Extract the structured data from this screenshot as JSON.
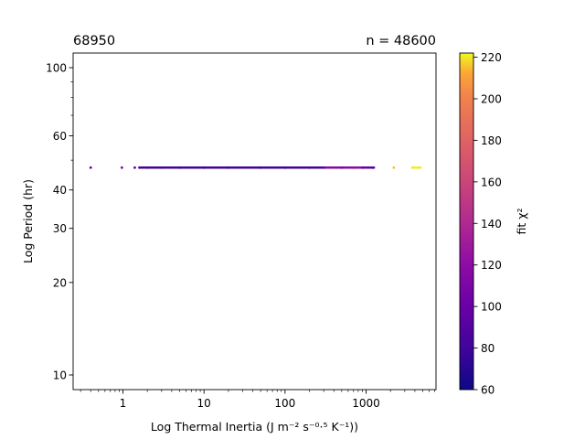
{
  "chart_data": {
    "type": "scatter",
    "title_left": "68950",
    "title_right": "n = 48600",
    "xlabel": "Log Thermal Inertia (J m⁻² s⁻⁰·⁵ K⁻¹))",
    "ylabel": "Log Period (hr)",
    "xscale": "log",
    "yscale": "log",
    "xlim": [
      0.25,
      700
    ],
    "ylim": [
      9.2,
      108
    ],
    "xticks": [
      1,
      10,
      100,
      1000
    ],
    "xtick_labels": [
      "1",
      "10",
      "100",
      "1000"
    ],
    "yticks": [
      10,
      20,
      30,
      40,
      60,
      100
    ],
    "ytick_labels": [
      "10",
      "20",
      "30",
      "40",
      "60",
      "100"
    ],
    "colorbar": {
      "label": "fit χ²",
      "colormap": "plasma",
      "min": 60,
      "max": 222,
      "ticks": [
        60,
        80,
        100,
        120,
        140,
        160,
        180,
        200,
        220
      ]
    },
    "series": [
      {
        "period_hr": 47.3,
        "points": [
          {
            "x": 0.4,
            "c": 100
          },
          {
            "x": 0.97,
            "c": 110
          },
          {
            "x": 1.4,
            "c": 95
          },
          {
            "x": 1.6,
            "c": 90
          },
          {
            "x": 2.0,
            "c": 85
          },
          {
            "x": 3.0,
            "c": 80
          },
          {
            "x": 5.0,
            "c": 78
          },
          {
            "x": 10,
            "c": 76
          },
          {
            "x": 20,
            "c": 75
          },
          {
            "x": 50,
            "c": 75
          },
          {
            "x": 100,
            "c": 76
          },
          {
            "x": 200,
            "c": 80
          },
          {
            "x": 300,
            "c": 90
          },
          {
            "x": 500,
            "c": 110
          },
          {
            "x": 700,
            "c": 120
          },
          {
            "x": 900,
            "c": 100
          },
          {
            "x": 1200,
            "c": 90
          },
          {
            "x": 2200,
            "c": 215
          },
          {
            "x": 3800,
            "c": 220
          },
          {
            "x": 4500,
            "c": 220
          }
        ],
        "segments": [
          {
            "x_from": 1.6,
            "x_to": 300,
            "c": 80
          },
          {
            "x_from": 300,
            "x_to": 900,
            "c": 115
          },
          {
            "x_from": 900,
            "x_to": 1250,
            "c": 95
          },
          {
            "x_from": 3700,
            "x_to": 4700,
            "c": 221
          }
        ]
      }
    ]
  }
}
